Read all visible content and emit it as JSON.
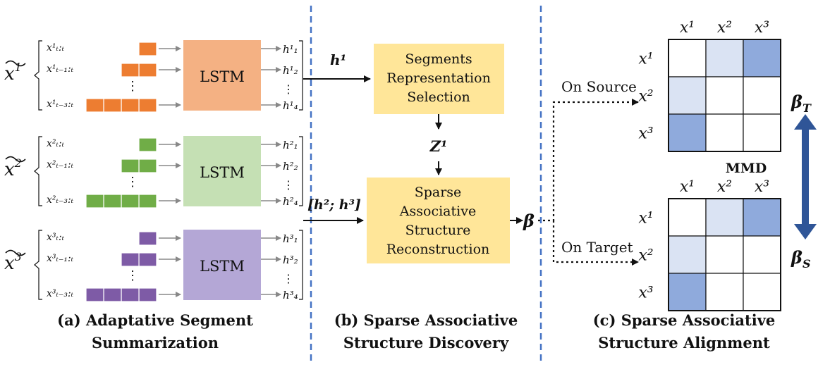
{
  "colors": {
    "orange": "#ED7D31",
    "orange_box": "#F4B183",
    "green": "#70AD47",
    "green_box": "#C5E0B4",
    "purple": "#7E5BA6",
    "purple_box": "#B4A7D6",
    "yellow_box": "#FFE699",
    "light_blue": "#DAE3F3",
    "mid_blue": "#8FAADC",
    "dash_blue": "#4472C4",
    "arrow_blue": "#2F5597"
  },
  "panel_a": {
    "caption_line1": "(a) Adaptative Segment",
    "caption_line2": "Summarization",
    "groups": [
      {
        "var_base": "x",
        "var_sup": "1",
        "lstm": "LSTM",
        "seg_labels": [
          "x¹ₜ:ₜ",
          "x¹ₜ₋₁:ₜ",
          "x¹ₜ₋₃:ₜ"
        ],
        "h_labels": [
          "h¹₁",
          "h¹₂",
          "h¹₄"
        ]
      },
      {
        "var_base": "x",
        "var_sup": "2",
        "lstm": "LSTM",
        "seg_labels": [
          "x²ₜ:ₜ",
          "x²ₜ₋₁:ₜ",
          "x²ₜ₋₃:ₜ"
        ],
        "h_labels": [
          "h²₁",
          "h²₂",
          "h²₄"
        ]
      },
      {
        "var_base": "x",
        "var_sup": "3",
        "lstm": "LSTM",
        "seg_labels": [
          "x³ₜ:ₜ",
          "x³ₜ₋₁:ₜ",
          "x³ₜ₋₃:ₜ"
        ],
        "h_labels": [
          "h³₁",
          "h³₂",
          "h³₄"
        ]
      }
    ],
    "dots": "⋮"
  },
  "panel_b": {
    "h1_label": "h¹",
    "h23_label": "[h²; h³]",
    "box1_lines": [
      "Segments",
      "Representation",
      "Selection"
    ],
    "z_label": "Z¹",
    "box2_lines": [
      "Sparse",
      "Associative",
      "Structure",
      "Reconstruction"
    ],
    "beta_label": "β",
    "caption_line1": "(b) Sparse Associative",
    "caption_line2": "Structure Discovery"
  },
  "panel_c": {
    "on_source": "On Source",
    "on_target": "On Target",
    "col_labels": [
      "x¹",
      "x²",
      "x³"
    ],
    "row_labels": [
      "x¹",
      "x²",
      "x³"
    ],
    "x2_arrow_label": "x²",
    "mmd": "MMD",
    "beta_t": "β",
    "beta_t_sub": "T",
    "beta_s": "β",
    "beta_s_sub": "S",
    "caption_line1": "(c) Sparse Associative",
    "caption_line2": "Structure Alignment"
  }
}
